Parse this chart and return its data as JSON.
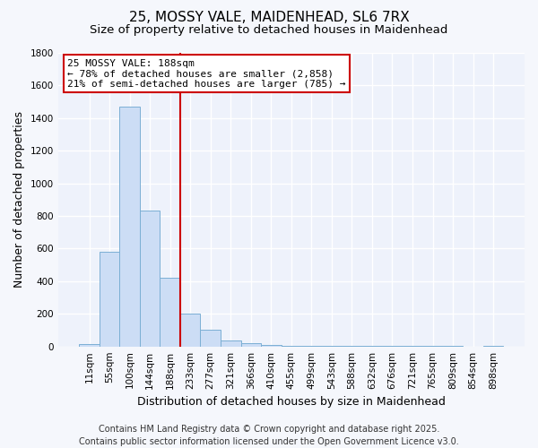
{
  "title_line1": "25, MOSSY VALE, MAIDENHEAD, SL6 7RX",
  "title_line2": "Size of property relative to detached houses in Maidenhead",
  "xlabel": "Distribution of detached houses by size in Maidenhead",
  "ylabel": "Number of detached properties",
  "categories": [
    "11sqm",
    "55sqm",
    "100sqm",
    "144sqm",
    "188sqm",
    "233sqm",
    "277sqm",
    "321sqm",
    "366sqm",
    "410sqm",
    "455sqm",
    "499sqm",
    "543sqm",
    "588sqm",
    "632sqm",
    "676sqm",
    "721sqm",
    "765sqm",
    "809sqm",
    "854sqm",
    "898sqm"
  ],
  "values": [
    15,
    580,
    1470,
    835,
    420,
    200,
    100,
    35,
    20,
    8,
    3,
    2,
    2,
    1,
    1,
    1,
    1,
    1,
    1,
    0,
    1
  ],
  "bar_color": "#ccddf5",
  "bar_edge_color": "#7bafd4",
  "red_line_index": 4,
  "red_line_color": "#cc0000",
  "ylim": [
    0,
    1800
  ],
  "yticks": [
    0,
    200,
    400,
    600,
    800,
    1000,
    1200,
    1400,
    1600,
    1800
  ],
  "annotation_title": "25 MOSSY VALE: 188sqm",
  "annotation_line1": "← 78% of detached houses are smaller (2,858)",
  "annotation_line2": "21% of semi-detached houses are larger (785) →",
  "annotation_box_color": "#ffffff",
  "annotation_box_edge_color": "#cc0000",
  "footer_line1": "Contains HM Land Registry data © Crown copyright and database right 2025.",
  "footer_line2": "Contains public sector information licensed under the Open Government Licence v3.0.",
  "plot_bg_color": "#eef2fb",
  "fig_bg_color": "#f5f7fc",
  "grid_color": "#ffffff",
  "title_fontsize": 11,
  "subtitle_fontsize": 9.5,
  "axis_label_fontsize": 9,
  "tick_fontsize": 7.5,
  "annotation_fontsize": 8,
  "footer_fontsize": 7
}
